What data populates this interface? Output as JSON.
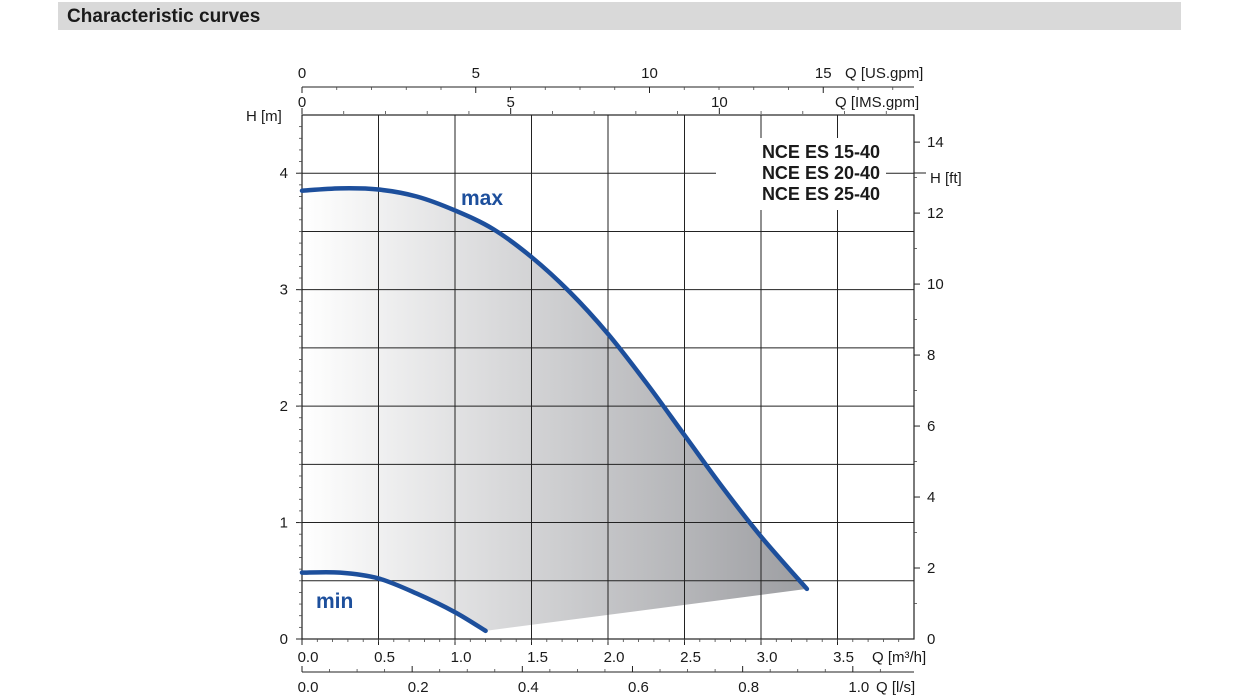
{
  "header": {
    "title": "Characteristic curves"
  },
  "chart_data": {
    "type": "line",
    "title_lines": [
      "NCE ES 15-40",
      "NCE ES 20-40",
      "NCE ES 25-40"
    ],
    "x_axis_m3h": {
      "label": "Q [m³/h]",
      "ticks": [
        "0.0",
        "0.5",
        "1.0",
        "1.5",
        "2.0",
        "2.5",
        "3.0",
        "3.5"
      ],
      "range": [
        0,
        4.0
      ]
    },
    "x_axis_ls": {
      "label": "Q [l/s]",
      "ticks": [
        "0.0",
        "0.2",
        "0.4",
        "0.6",
        "0.8",
        "1.0"
      ],
      "values": [
        0,
        0.2,
        0.4,
        0.6,
        0.8,
        1.0
      ]
    },
    "x_axis_usgpm": {
      "label": "Q [US.gpm]",
      "ticks": [
        "0",
        "5",
        "10",
        "15"
      ],
      "values": [
        0,
        5,
        10,
        15
      ]
    },
    "x_axis_imsgpm": {
      "label": "Q [IMS.gpm]",
      "ticks": [
        "0",
        "5",
        "10"
      ],
      "values": [
        0,
        5,
        10
      ]
    },
    "y_axis_m": {
      "label": "H [m]",
      "ticks": [
        "0",
        "1",
        "2",
        "3",
        "4"
      ],
      "range": [
        0,
        4.5
      ]
    },
    "y_axis_ft": {
      "label": "H [ft]",
      "ticks": [
        "2",
        "4",
        "6",
        "8",
        "10",
        "12",
        "14"
      ],
      "values": [
        2,
        4,
        6,
        8,
        10,
        12,
        14
      ],
      "zero_label": "0"
    },
    "grid": true,
    "series": [
      {
        "name": "max",
        "color": "#1d4f9c",
        "x": [
          0.0,
          0.25,
          0.5,
          0.75,
          1.0,
          1.25,
          1.5,
          1.75,
          2.0,
          2.25,
          2.5,
          2.75,
          3.0,
          3.3
        ],
        "y": [
          3.85,
          3.87,
          3.86,
          3.8,
          3.68,
          3.52,
          3.28,
          2.98,
          2.62,
          2.2,
          1.75,
          1.3,
          0.88,
          0.43
        ]
      },
      {
        "name": "min",
        "color": "#1d4f9c",
        "x": [
          0.0,
          0.25,
          0.5,
          0.75,
          1.0,
          1.2
        ],
        "y": [
          0.57,
          0.57,
          0.52,
          0.39,
          0.23,
          0.07
        ]
      }
    ],
    "shaded_region": true
  }
}
